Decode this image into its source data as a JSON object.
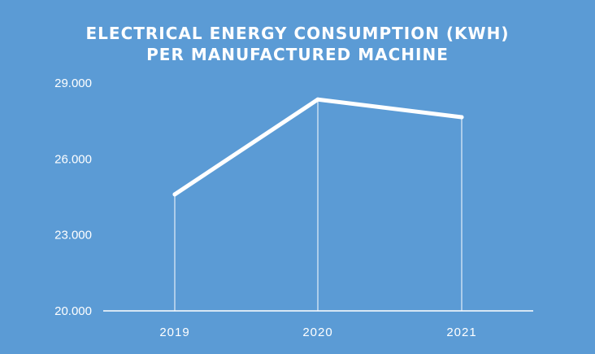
{
  "chart_data": {
    "type": "line",
    "title_lines": [
      "ELECTRICAL ENERGY CONSUMPTION (KWH)",
      "PER MANUFACTURED MACHINE"
    ],
    "categories": [
      "2019",
      "2020",
      "2021"
    ],
    "values": [
      24600,
      28350,
      27650
    ],
    "ylim": [
      20000,
      29000
    ],
    "y_ticks": [
      20000,
      23000,
      26000,
      29000
    ],
    "y_tick_labels": [
      "20.000",
      "23.000",
      "26.000",
      "29.000"
    ],
    "xlabel": "",
    "ylabel": "",
    "grid": false,
    "drop_lines": true,
    "colors": {
      "background": "#5b9bd5",
      "line": "#ffffff",
      "axis": "#ffffff",
      "text": "#ffffff"
    }
  }
}
